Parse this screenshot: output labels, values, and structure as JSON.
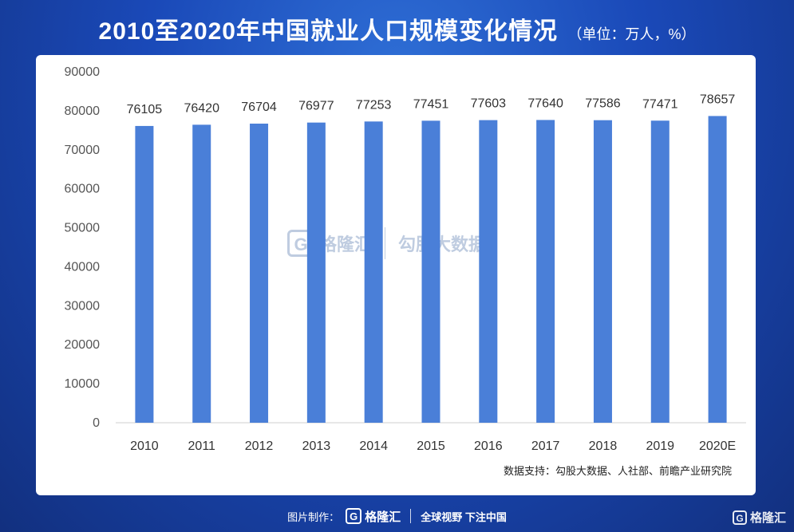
{
  "header": {
    "title": "2010至2020年中国就业人口规模变化情况",
    "unit": "（单位：万人，%）"
  },
  "chart_data": {
    "type": "bar",
    "categories": [
      "2010",
      "2011",
      "2012",
      "2013",
      "2014",
      "2015",
      "2016",
      "2017",
      "2018",
      "2019",
      "2020E"
    ],
    "values": [
      76105,
      76420,
      76704,
      76977,
      77253,
      77451,
      77603,
      77640,
      77586,
      77471,
      78657
    ],
    "ylim": [
      0,
      90000
    ],
    "yticks": [
      0,
      10000,
      20000,
      30000,
      40000,
      50000,
      60000,
      70000,
      80000,
      90000
    ],
    "bar_color": "#4a7fd8",
    "grid": false,
    "legend": "none"
  },
  "source": "数据支持：勾股大数据、人社部、前瞻产业研究院",
  "watermark": {
    "logo_glyph": "G",
    "brand": "格隆汇",
    "brand2": "勾股大数据"
  },
  "footer": {
    "made_by": "图片制作：",
    "logo_glyph": "G",
    "brand": "格隆汇",
    "slogan": "全球视野 下注中国"
  },
  "corner_logo": {
    "logo_glyph": "G",
    "brand": "格隆汇"
  }
}
